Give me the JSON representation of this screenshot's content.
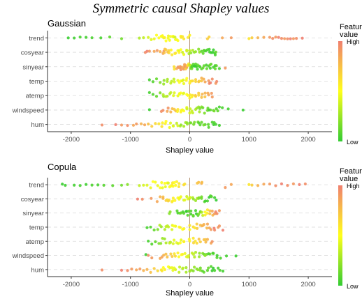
{
  "title": "Symmetric causal Shapley values",
  "colors": {
    "low": "#33cc33",
    "mid": "#ffff1a",
    "high": "#f08070",
    "grid": "#d9d9d9",
    "zero_line": "#b08e6e"
  },
  "legend": {
    "title": "Feature\nvalue",
    "high_label": "High",
    "low_label": "Low",
    "placement": "right"
  },
  "chart_data": [
    {
      "type": "scatter",
      "title": "Gaussian",
      "xlabel": "Shapley value",
      "ylabel": "",
      "xlim": [
        -2400,
        2400
      ],
      "xticks": [
        -2000,
        -1000,
        0,
        1000,
        2000
      ],
      "categories": [
        "trend",
        "cosyear",
        "sinyear",
        "temp",
        "atemp",
        "windspeed",
        "hum"
      ],
      "grid": true,
      "series": [
        {
          "category": "trend",
          "x": [
            -2050,
            -1950,
            -1850,
            -1750,
            -1650,
            -1500,
            -1350,
            -1150,
            -850,
            -780,
            -700,
            -650,
            -600,
            -560,
            -520,
            -480,
            -440,
            -400,
            -360,
            -320,
            -280,
            -240,
            -200,
            -150,
            -100,
            0,
            300,
            550,
            700,
            1000,
            1050,
            1150,
            1250,
            1350,
            1400,
            1450,
            1500,
            1550,
            1600,
            1650,
            1700,
            1750,
            1800,
            1900
          ],
          "c": [
            0.02,
            0.03,
            0.05,
            0.04,
            0.06,
            0.05,
            0.1,
            0.15,
            0.3,
            0.35,
            0.4,
            0.42,
            0.45,
            0.5,
            0.5,
            0.48,
            0.45,
            0.5,
            0.45,
            0.48,
            0.5,
            0.45,
            0.5,
            0.55,
            0.6,
            0.55,
            0.7,
            0.85,
            0.9,
            0.6,
            0.7,
            0.8,
            0.85,
            0.9,
            0.95,
            0.9,
            1.0,
            0.95,
            0.9,
            0.95,
            1.0,
            0.9,
            0.95,
            1.0
          ]
        },
        {
          "category": "cosyear",
          "x": [
            -750,
            -720,
            -680,
            -600,
            -550,
            -500,
            -450,
            -420,
            -400,
            -350,
            -300,
            -250,
            -200,
            -150,
            -100,
            -50,
            0,
            50,
            100,
            150,
            200,
            250,
            300,
            330,
            360,
            400,
            430
          ],
          "c": [
            0.95,
            1.0,
            0.9,
            0.85,
            0.9,
            0.8,
            0.85,
            0.75,
            0.7,
            0.65,
            0.6,
            0.55,
            0.5,
            0.5,
            0.45,
            0.4,
            0.35,
            0.3,
            0.25,
            0.2,
            0.1,
            0.05,
            0.08,
            0.05,
            0.03,
            0.02,
            0.05
          ]
        },
        {
          "category": "sinyear",
          "x": [
            -260,
            -220,
            -180,
            -150,
            -120,
            -100,
            -80,
            -60,
            -40,
            -20,
            0,
            20,
            40,
            60,
            80,
            100,
            130,
            160,
            200,
            240,
            280,
            320,
            360,
            400,
            450,
            500,
            600
          ],
          "c": [
            0.6,
            0.85,
            0.9,
            0.95,
            0.8,
            0.9,
            0.95,
            0.85,
            0.7,
            0.6,
            0.3,
            0.2,
            0.15,
            0.1,
            0.05,
            0.1,
            0.05,
            0.08,
            0.1,
            0.12,
            0.05,
            0.06,
            0.1,
            0.05,
            0.1,
            0.05,
            0.9
          ]
        },
        {
          "category": "temp",
          "x": [
            -680,
            -620,
            -560,
            -500,
            -440,
            -380,
            -320,
            -260,
            -200,
            -150,
            -100,
            -50,
            0,
            50,
            100,
            150,
            200,
            260,
            320,
            380,
            440
          ],
          "c": [
            0.05,
            0.08,
            0.12,
            0.18,
            0.25,
            0.3,
            0.35,
            0.4,
            0.45,
            0.5,
            0.45,
            0.5,
            0.6,
            0.65,
            0.7,
            0.75,
            0.8,
            0.85,
            0.9,
            0.95,
            0.9
          ]
        },
        {
          "category": "atemp",
          "x": [
            -680,
            -620,
            -560,
            -500,
            -440,
            -380,
            -320,
            -260,
            -200,
            -150,
            -100,
            -50,
            0,
            50,
            100,
            150,
            200,
            260,
            320,
            380
          ],
          "c": [
            0.05,
            0.08,
            0.12,
            0.18,
            0.25,
            0.3,
            0.35,
            0.42,
            0.45,
            0.5,
            0.45,
            0.5,
            0.55,
            0.6,
            0.65,
            0.7,
            0.75,
            0.8,
            0.85,
            0.9
          ]
        },
        {
          "category": "windspeed",
          "x": [
            -680,
            -450,
            -380,
            -320,
            -260,
            -200,
            -150,
            -100,
            -50,
            0,
            50,
            100,
            150,
            200,
            250,
            300,
            350,
            400,
            450,
            500,
            550,
            650,
            900
          ],
          "c": [
            0.02,
            0.95,
            0.85,
            0.8,
            0.7,
            0.6,
            0.55,
            0.5,
            0.45,
            0.4,
            0.35,
            0.3,
            0.25,
            0.2,
            0.18,
            0.15,
            0.12,
            0.1,
            0.08,
            0.05,
            0.06,
            0.04,
            0.02
          ]
        },
        {
          "category": "hum",
          "x": [
            -1480,
            -1250,
            -1150,
            -1050,
            -950,
            -900,
            -820,
            -760,
            -700,
            -640,
            -580,
            -520,
            -460,
            -400,
            -340,
            -280,
            -220,
            -160,
            -100,
            -40,
            20,
            80,
            140,
            200,
            260,
            320,
            380,
            440,
            500
          ],
          "c": [
            0.95,
            1.0,
            0.9,
            0.95,
            0.85,
            0.9,
            0.8,
            0.85,
            0.75,
            0.7,
            0.65,
            0.6,
            0.55,
            0.5,
            0.45,
            0.4,
            0.35,
            0.3,
            0.28,
            0.25,
            0.2,
            0.18,
            0.15,
            0.12,
            0.1,
            0.08,
            0.06,
            0.05,
            0.04
          ]
        }
      ]
    },
    {
      "type": "scatter",
      "title": "Copula",
      "xlabel": "Shapley value",
      "ylabel": "",
      "xlim": [
        -2400,
        2400
      ],
      "xticks": [
        -2000,
        -1000,
        0,
        1000,
        2000
      ],
      "categories": [
        "trend",
        "cosyear",
        "sinyear",
        "temp",
        "atemp",
        "windspeed",
        "hum"
      ],
      "grid": true,
      "series": [
        {
          "category": "trend",
          "x": [
            -2150,
            -2100,
            -1950,
            -1850,
            -1750,
            -1650,
            -1550,
            -1450,
            -1300,
            -1150,
            -1050,
            -850,
            -780,
            -720,
            -660,
            -620,
            -580,
            -540,
            -500,
            -460,
            -420,
            -380,
            -340,
            -300,
            -260,
            -220,
            -180,
            -100,
            150,
            200,
            600,
            700,
            1000,
            1050,
            1150,
            1250,
            1350,
            1450,
            1550,
            1650,
            1750,
            1850,
            1950
          ],
          "c": [
            0.02,
            0.03,
            0.04,
            0.05,
            0.03,
            0.06,
            0.05,
            0.08,
            0.1,
            0.15,
            0.2,
            0.35,
            0.4,
            0.42,
            0.45,
            0.5,
            0.48,
            0.45,
            0.5,
            0.45,
            0.5,
            0.48,
            0.5,
            0.55,
            0.5,
            0.55,
            0.6,
            0.65,
            0.75,
            0.8,
            0.9,
            0.85,
            0.6,
            0.7,
            0.8,
            0.85,
            0.9,
            0.95,
            1.0,
            0.95,
            0.9,
            1.0,
            0.95
          ]
        },
        {
          "category": "cosyear",
          "x": [
            -880,
            -800,
            -650,
            -550,
            -500,
            -450,
            -400,
            -350,
            -300,
            -250,
            -200,
            -150,
            -100,
            -50,
            0,
            50,
            100,
            150,
            200,
            250,
            300,
            350,
            420
          ],
          "c": [
            1.0,
            0.95,
            0.9,
            0.85,
            0.8,
            0.75,
            0.7,
            0.65,
            0.6,
            0.55,
            0.5,
            0.45,
            0.4,
            0.38,
            0.35,
            0.3,
            0.25,
            0.2,
            0.15,
            0.1,
            0.05,
            0.08,
            0.04
          ]
        },
        {
          "category": "sinyear",
          "x": [
            -330,
            -200,
            -150,
            -100,
            -60,
            -20,
            20,
            60,
            100,
            140,
            180,
            220,
            260,
            300,
            340,
            380,
            420,
            460,
            500
          ],
          "c": [
            0.2,
            0.05,
            0.1,
            0.08,
            0.06,
            0.1,
            0.08,
            0.06,
            0.05,
            0.1,
            0.2,
            0.35,
            0.5,
            0.6,
            0.75,
            0.85,
            0.9,
            0.95,
            0.9
          ]
        },
        {
          "category": "temp",
          "x": [
            -720,
            -660,
            -600,
            -540,
            -480,
            -420,
            -360,
            -300,
            -240,
            -180,
            -120,
            0,
            60,
            120,
            180,
            240,
            300,
            360,
            420,
            480,
            560
          ],
          "c": [
            0.05,
            0.08,
            0.12,
            0.18,
            0.25,
            0.3,
            0.35,
            0.4,
            0.45,
            0.5,
            0.5,
            0.6,
            0.65,
            0.7,
            0.75,
            0.8,
            0.85,
            0.9,
            0.95,
            0.9,
            1.0
          ]
        },
        {
          "category": "atemp",
          "x": [
            -700,
            -640,
            -580,
            -520,
            -460,
            -400,
            -340,
            -280,
            -220,
            -160,
            -100,
            0,
            60,
            120,
            180,
            240,
            300,
            360
          ],
          "c": [
            0.05,
            0.08,
            0.12,
            0.18,
            0.25,
            0.3,
            0.35,
            0.4,
            0.45,
            0.5,
            0.5,
            0.55,
            0.6,
            0.65,
            0.7,
            0.75,
            0.8,
            0.85
          ]
        },
        {
          "category": "windspeed",
          "x": [
            -740,
            -700,
            -640,
            -500,
            -440,
            -380,
            -320,
            -260,
            -200,
            -140,
            -80,
            -20,
            40,
            100,
            160,
            220,
            280,
            340,
            400,
            460,
            520,
            620,
            780
          ],
          "c": [
            0.02,
            0.95,
            0.9,
            0.85,
            0.8,
            0.75,
            0.7,
            0.6,
            0.55,
            0.5,
            0.45,
            0.4,
            0.35,
            0.3,
            0.25,
            0.2,
            0.15,
            0.12,
            0.1,
            0.08,
            0.06,
            0.04,
            0.02
          ]
        },
        {
          "category": "hum",
          "x": [
            -1480,
            -1150,
            -1050,
            -980,
            -900,
            -840,
            -780,
            -720,
            -660,
            -600,
            -540,
            -480,
            -420,
            -360,
            -300,
            -240,
            -180,
            -120,
            -60,
            0,
            60,
            120,
            180,
            240,
            300,
            360,
            420,
            480,
            560
          ],
          "c": [
            0.95,
            1.0,
            0.95,
            0.9,
            0.85,
            0.9,
            0.8,
            0.8,
            0.75,
            0.7,
            0.65,
            0.6,
            0.55,
            0.5,
            0.45,
            0.4,
            0.35,
            0.3,
            0.28,
            0.25,
            0.2,
            0.18,
            0.15,
            0.12,
            0.1,
            0.08,
            0.06,
            0.05,
            0.04
          ]
        }
      ]
    }
  ]
}
